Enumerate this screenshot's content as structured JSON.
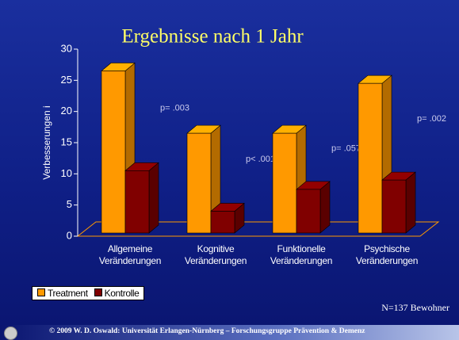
{
  "chart_data": {
    "type": "bar3d",
    "title": "Ergebnisse nach 1 Jahr",
    "y_label": "Verbesserungen i",
    "categories": [
      "Allgemeine Veränderungen",
      "Kognitive Veränderungen",
      "Funktionelle Veränderungen",
      "Psychische Veränderungen"
    ],
    "series": [
      {
        "name": "Treatment",
        "color": "#ff9900",
        "values": [
          26,
          16,
          16,
          24
        ]
      },
      {
        "name": "Kontrolle",
        "color": "#800000",
        "values": [
          10,
          3.5,
          7,
          8.5
        ]
      }
    ],
    "annotations": [
      "p= .003",
      "p< .001",
      "p= .057",
      "p= .002"
    ],
    "ylim": [
      0,
      30
    ],
    "yticks": [
      0,
      5,
      10,
      15,
      20,
      25,
      30
    ],
    "legend": "bottom-left",
    "note": "N=137 Bewohner",
    "footer": "© 2009   W. D. Oswald: Universität Erlangen-Nürnberg – Forschungsgruppe Prävention & Demenz"
  }
}
